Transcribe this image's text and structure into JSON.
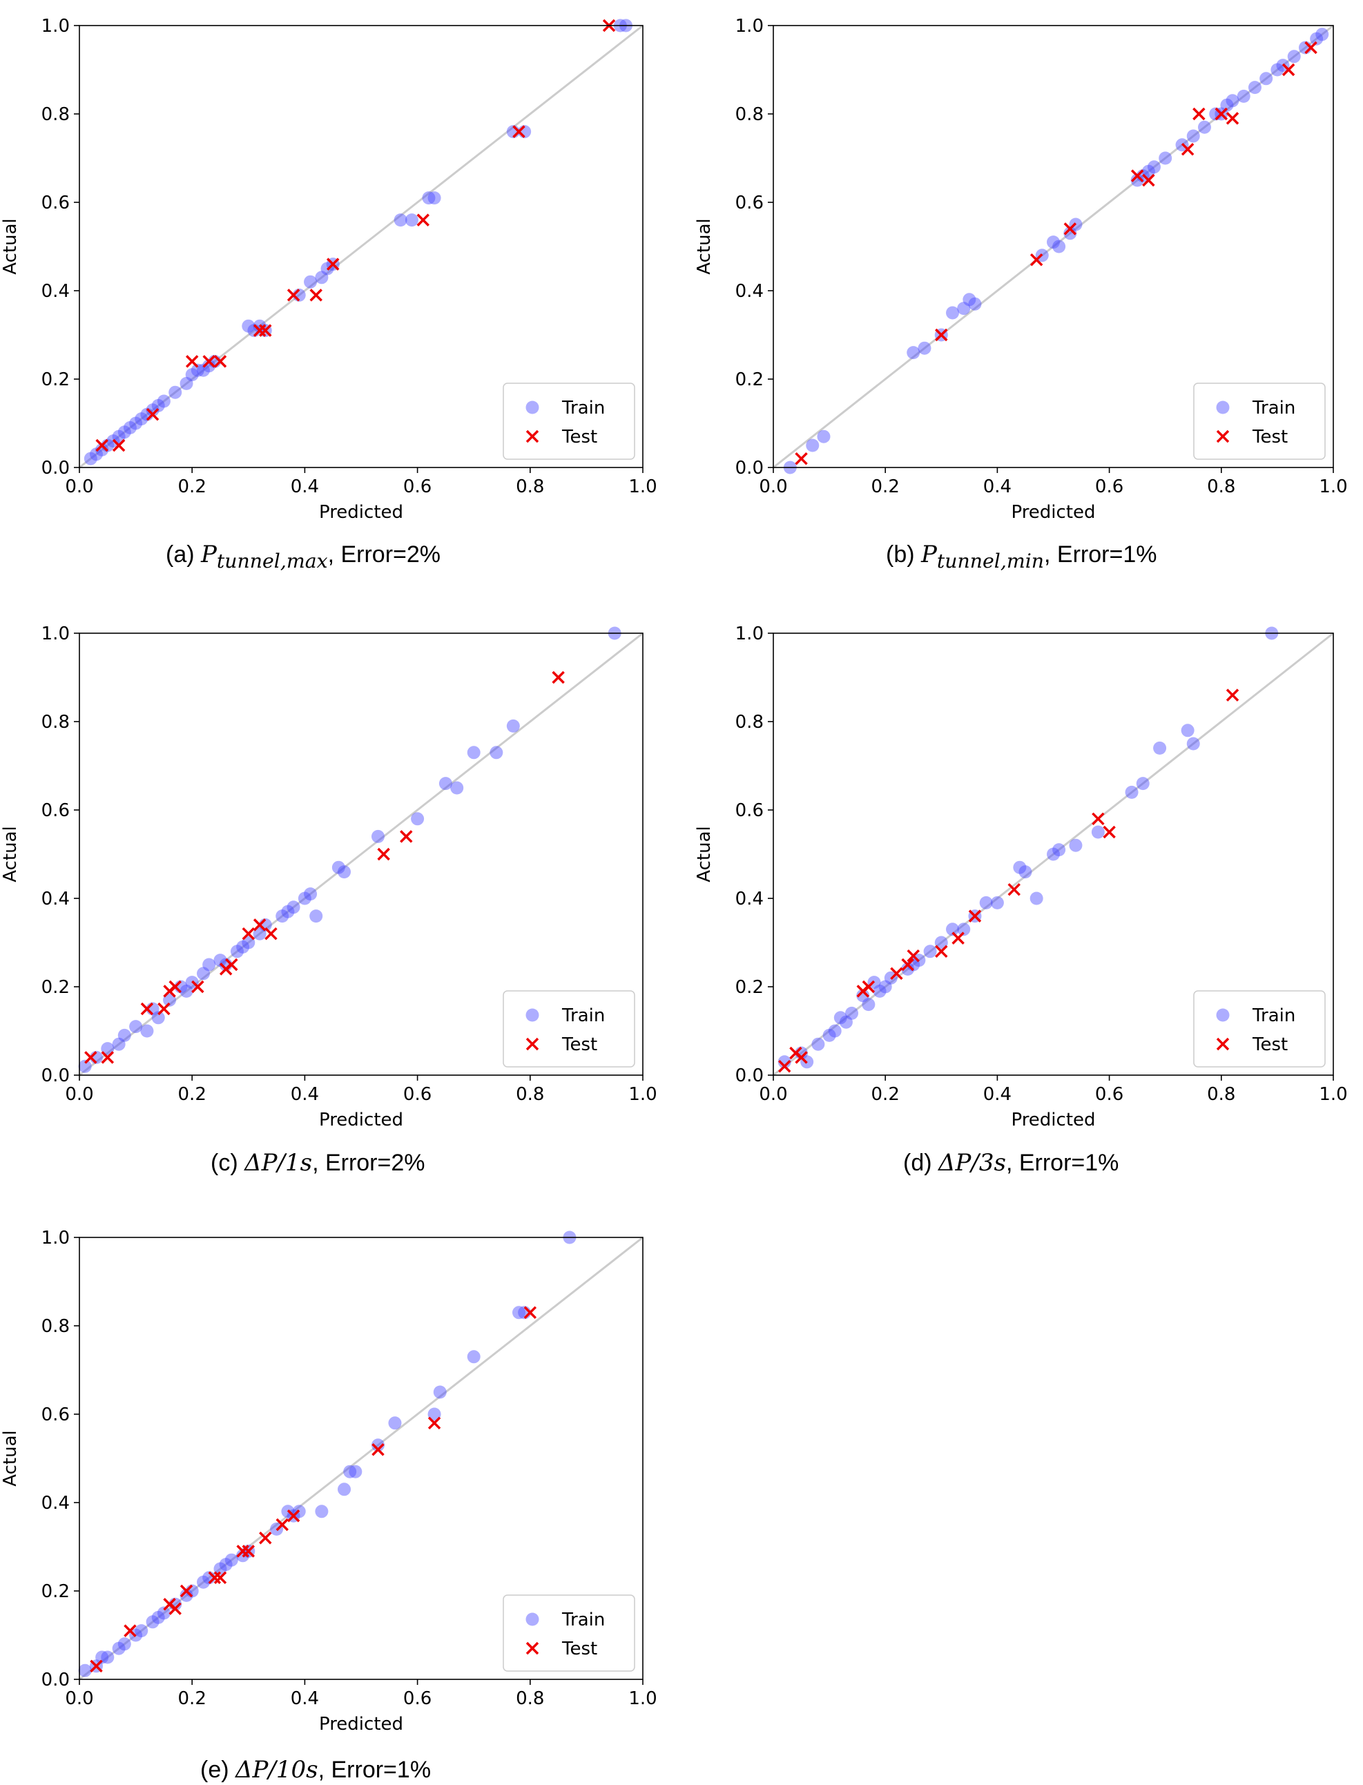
{
  "figure": {
    "captions": [
      {
        "prefix": "(a) ",
        "math_main": "P",
        "math_sub": "tunnel,max",
        "suffix": ", Error=2%"
      },
      {
        "prefix": "(b) ",
        "math_main": "P",
        "math_sub": "tunnel,min",
        "suffix": ", Error=1%"
      },
      {
        "prefix": "(c) ",
        "math_main": "ΔP/1s",
        "math_sub": "",
        "suffix": ", Error=2%"
      },
      {
        "prefix": "(d) ",
        "math_main": "ΔP/3s",
        "math_sub": "",
        "suffix": ", Error=1%"
      },
      {
        "prefix": "(e) ",
        "math_main": "ΔP/10s",
        "math_sub": "",
        "suffix": ", Error=1%"
      }
    ]
  },
  "colors": {
    "train": "#4a4aff",
    "test": "#ee0000",
    "diagonal": "#cccccc"
  },
  "chart_data": [
    {
      "type": "scatter",
      "id": "a",
      "xlabel": "Predicted",
      "ylabel": "Actual",
      "xlim": [
        0,
        1
      ],
      "ylim": [
        0,
        1
      ],
      "xticks": [
        "0.0",
        "0.2",
        "0.4",
        "0.6",
        "0.8",
        "1.0"
      ],
      "yticks": [
        "0.0",
        "0.2",
        "0.4",
        "0.6",
        "0.8",
        "1.0"
      ],
      "legend": {
        "entries": [
          "Train",
          "Test"
        ],
        "position": "lower-right"
      },
      "diagonal": true,
      "series": [
        {
          "name": "Train",
          "marker": "circle",
          "x": [
            0.02,
            0.03,
            0.04,
            0.05,
            0.06,
            0.07,
            0.08,
            0.09,
            0.1,
            0.11,
            0.12,
            0.13,
            0.14,
            0.15,
            0.17,
            0.19,
            0.2,
            0.21,
            0.22,
            0.23,
            0.24,
            0.3,
            0.31,
            0.32,
            0.33,
            0.39,
            0.41,
            0.43,
            0.44,
            0.45,
            0.57,
            0.59,
            0.62,
            0.63,
            0.77,
            0.79,
            0.96,
            0.97
          ],
          "y": [
            0.02,
            0.03,
            0.04,
            0.05,
            0.06,
            0.07,
            0.08,
            0.09,
            0.1,
            0.11,
            0.12,
            0.13,
            0.14,
            0.15,
            0.17,
            0.19,
            0.21,
            0.22,
            0.22,
            0.23,
            0.24,
            0.32,
            0.31,
            0.32,
            0.31,
            0.39,
            0.42,
            0.43,
            0.45,
            0.46,
            0.56,
            0.56,
            0.61,
            0.61,
            0.76,
            0.76,
            1.0,
            1.0
          ]
        },
        {
          "name": "Test",
          "marker": "x",
          "x": [
            0.04,
            0.07,
            0.13,
            0.2,
            0.23,
            0.25,
            0.32,
            0.33,
            0.38,
            0.42,
            0.45,
            0.61,
            0.78,
            0.94
          ],
          "y": [
            0.05,
            0.05,
            0.12,
            0.24,
            0.24,
            0.24,
            0.31,
            0.31,
            0.39,
            0.39,
            0.46,
            0.56,
            0.76,
            1.0
          ]
        }
      ]
    },
    {
      "type": "scatter",
      "id": "b",
      "xlabel": "Predicted",
      "ylabel": "Actual",
      "xlim": [
        0,
        1
      ],
      "ylim": [
        0,
        1
      ],
      "xticks": [
        "0.0",
        "0.2",
        "0.4",
        "0.6",
        "0.8",
        "1.0"
      ],
      "yticks": [
        "0.0",
        "0.2",
        "0.4",
        "0.6",
        "0.8",
        "1.0"
      ],
      "legend": {
        "entries": [
          "Train",
          "Test"
        ],
        "position": "lower-right"
      },
      "diagonal": true,
      "series": [
        {
          "name": "Train",
          "marker": "circle",
          "x": [
            0.03,
            0.07,
            0.09,
            0.25,
            0.27,
            0.3,
            0.32,
            0.34,
            0.35,
            0.36,
            0.48,
            0.5,
            0.51,
            0.53,
            0.54,
            0.65,
            0.66,
            0.67,
            0.68,
            0.7,
            0.73,
            0.75,
            0.77,
            0.79,
            0.8,
            0.81,
            0.82,
            0.84,
            0.86,
            0.88,
            0.9,
            0.91,
            0.93,
            0.95,
            0.97,
            0.98
          ],
          "y": [
            0.0,
            0.05,
            0.07,
            0.26,
            0.27,
            0.3,
            0.35,
            0.36,
            0.38,
            0.37,
            0.48,
            0.51,
            0.5,
            0.53,
            0.55,
            0.65,
            0.66,
            0.67,
            0.68,
            0.7,
            0.73,
            0.75,
            0.77,
            0.8,
            0.8,
            0.82,
            0.83,
            0.84,
            0.86,
            0.88,
            0.9,
            0.91,
            0.93,
            0.95,
            0.97,
            0.98
          ]
        },
        {
          "name": "Test",
          "marker": "x",
          "x": [
            0.05,
            0.3,
            0.47,
            0.53,
            0.65,
            0.67,
            0.74,
            0.76,
            0.8,
            0.82,
            0.92,
            0.96
          ],
          "y": [
            0.02,
            0.3,
            0.47,
            0.54,
            0.66,
            0.65,
            0.72,
            0.8,
            0.8,
            0.79,
            0.9,
            0.95
          ]
        }
      ]
    },
    {
      "type": "scatter",
      "id": "c",
      "xlabel": "Predicted",
      "ylabel": "Actual",
      "xlim": [
        0,
        1
      ],
      "ylim": [
        0,
        1
      ],
      "xticks": [
        "0.0",
        "0.2",
        "0.4",
        "0.6",
        "0.8",
        "1.0"
      ],
      "yticks": [
        "0.0",
        "0.2",
        "0.4",
        "0.6",
        "0.8",
        "1.0"
      ],
      "legend": {
        "entries": [
          "Train",
          "Test"
        ],
        "position": "lower-right"
      },
      "diagonal": true,
      "series": [
        {
          "name": "Train",
          "marker": "circle",
          "x": [
            0.01,
            0.03,
            0.05,
            0.07,
            0.08,
            0.1,
            0.12,
            0.13,
            0.14,
            0.16,
            0.18,
            0.19,
            0.2,
            0.22,
            0.23,
            0.25,
            0.26,
            0.28,
            0.29,
            0.3,
            0.32,
            0.33,
            0.36,
            0.37,
            0.38,
            0.4,
            0.41,
            0.42,
            0.46,
            0.47,
            0.53,
            0.6,
            0.65,
            0.67,
            0.7,
            0.74,
            0.77,
            0.95
          ],
          "y": [
            0.02,
            0.04,
            0.06,
            0.07,
            0.09,
            0.11,
            0.1,
            0.15,
            0.13,
            0.17,
            0.2,
            0.19,
            0.21,
            0.23,
            0.25,
            0.26,
            0.25,
            0.28,
            0.29,
            0.3,
            0.32,
            0.34,
            0.36,
            0.37,
            0.38,
            0.4,
            0.41,
            0.36,
            0.47,
            0.46,
            0.54,
            0.58,
            0.66,
            0.65,
            0.73,
            0.73,
            0.79,
            1.0
          ]
        },
        {
          "name": "Test",
          "marker": "x",
          "x": [
            0.02,
            0.05,
            0.12,
            0.15,
            0.16,
            0.17,
            0.21,
            0.26,
            0.27,
            0.3,
            0.32,
            0.34,
            0.54,
            0.58,
            0.85
          ],
          "y": [
            0.04,
            0.04,
            0.15,
            0.15,
            0.19,
            0.2,
            0.2,
            0.24,
            0.25,
            0.32,
            0.34,
            0.32,
            0.5,
            0.54,
            0.9
          ]
        }
      ]
    },
    {
      "type": "scatter",
      "id": "d",
      "xlabel": "Predicted",
      "ylabel": "Actual",
      "xlim": [
        0,
        1
      ],
      "ylim": [
        0,
        1
      ],
      "xticks": [
        "0.0",
        "0.2",
        "0.4",
        "0.6",
        "0.8",
        "1.0"
      ],
      "yticks": [
        "0.0",
        "0.2",
        "0.4",
        "0.6",
        "0.8",
        "1.0"
      ],
      "legend": {
        "entries": [
          "Train",
          "Test"
        ],
        "position": "lower-right"
      },
      "diagonal": true,
      "series": [
        {
          "name": "Train",
          "marker": "circle",
          "x": [
            0.02,
            0.05,
            0.06,
            0.08,
            0.1,
            0.11,
            0.12,
            0.13,
            0.14,
            0.16,
            0.17,
            0.18,
            0.19,
            0.2,
            0.21,
            0.24,
            0.25,
            0.26,
            0.28,
            0.3,
            0.32,
            0.34,
            0.36,
            0.38,
            0.4,
            0.44,
            0.45,
            0.47,
            0.5,
            0.51,
            0.54,
            0.58,
            0.64,
            0.66,
            0.69,
            0.74,
            0.75,
            0.89
          ],
          "y": [
            0.03,
            0.05,
            0.03,
            0.07,
            0.09,
            0.1,
            0.13,
            0.12,
            0.14,
            0.18,
            0.16,
            0.21,
            0.19,
            0.2,
            0.22,
            0.24,
            0.25,
            0.26,
            0.28,
            0.3,
            0.33,
            0.33,
            0.36,
            0.39,
            0.39,
            0.47,
            0.46,
            0.4,
            0.5,
            0.51,
            0.52,
            0.55,
            0.64,
            0.66,
            0.74,
            0.78,
            0.75,
            1.0
          ]
        },
        {
          "name": "Test",
          "marker": "x",
          "x": [
            0.02,
            0.04,
            0.05,
            0.16,
            0.17,
            0.22,
            0.24,
            0.25,
            0.3,
            0.33,
            0.36,
            0.43,
            0.58,
            0.6,
            0.82
          ],
          "y": [
            0.02,
            0.05,
            0.04,
            0.19,
            0.2,
            0.23,
            0.25,
            0.27,
            0.28,
            0.31,
            0.36,
            0.42,
            0.58,
            0.55,
            0.86
          ]
        }
      ]
    },
    {
      "type": "scatter",
      "id": "e",
      "xlabel": "Predicted",
      "ylabel": "Actual",
      "xlim": [
        0,
        1
      ],
      "ylim": [
        0,
        1
      ],
      "xticks": [
        "0.0",
        "0.2",
        "0.4",
        "0.6",
        "0.8",
        "1.0"
      ],
      "yticks": [
        "0.0",
        "0.2",
        "0.4",
        "0.6",
        "0.8",
        "1.0"
      ],
      "legend": {
        "entries": [
          "Train",
          "Test"
        ],
        "position": "lower-right"
      },
      "diagonal": true,
      "series": [
        {
          "name": "Train",
          "marker": "circle",
          "x": [
            0.01,
            0.03,
            0.04,
            0.05,
            0.07,
            0.08,
            0.1,
            0.11,
            0.13,
            0.14,
            0.15,
            0.17,
            0.19,
            0.2,
            0.22,
            0.23,
            0.25,
            0.26,
            0.27,
            0.29,
            0.3,
            0.35,
            0.37,
            0.38,
            0.39,
            0.43,
            0.47,
            0.48,
            0.49,
            0.53,
            0.56,
            0.63,
            0.64,
            0.7,
            0.78,
            0.79,
            0.87
          ],
          "y": [
            0.02,
            0.03,
            0.05,
            0.05,
            0.07,
            0.08,
            0.1,
            0.11,
            0.13,
            0.14,
            0.15,
            0.17,
            0.19,
            0.2,
            0.22,
            0.23,
            0.25,
            0.26,
            0.27,
            0.28,
            0.29,
            0.34,
            0.38,
            0.37,
            0.38,
            0.38,
            0.43,
            0.47,
            0.47,
            0.53,
            0.58,
            0.6,
            0.65,
            0.73,
            0.83,
            0.83,
            1.0
          ]
        },
        {
          "name": "Test",
          "marker": "x",
          "x": [
            0.03,
            0.09,
            0.16,
            0.17,
            0.19,
            0.24,
            0.25,
            0.29,
            0.3,
            0.33,
            0.36,
            0.38,
            0.53,
            0.63,
            0.8
          ],
          "y": [
            0.03,
            0.11,
            0.17,
            0.16,
            0.2,
            0.23,
            0.23,
            0.29,
            0.29,
            0.32,
            0.35,
            0.37,
            0.52,
            0.58,
            0.83
          ]
        }
      ]
    }
  ]
}
